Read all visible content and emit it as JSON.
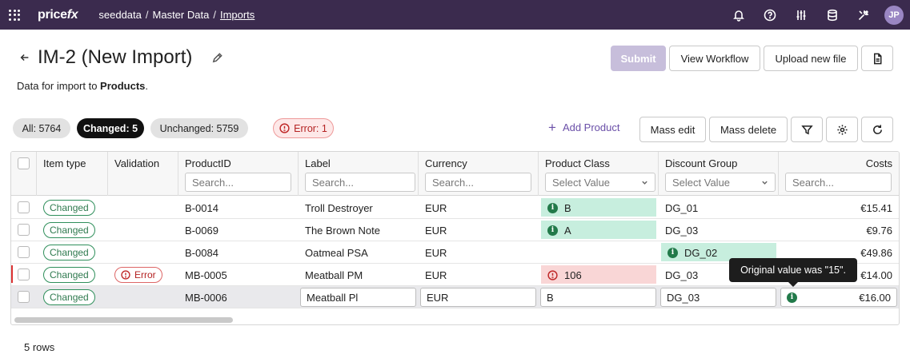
{
  "topbar": {
    "logo_main": "price",
    "logo_fx": "fx",
    "breadcrumb": [
      "seeddata",
      "Master Data",
      "Imports"
    ],
    "avatar_initials": "JP",
    "icons": [
      "bell-icon",
      "help-icon",
      "sliders-icon",
      "database-icon",
      "tools-icon"
    ]
  },
  "header": {
    "title": "IM-2 (New Import)",
    "subtitle_prefix": "Data for import to ",
    "subtitle_target": "Products",
    "subtitle_suffix": ".",
    "buttons": {
      "submit": "Submit",
      "view_workflow": "View Workflow",
      "upload_new_file": "Upload new file"
    }
  },
  "filters": {
    "all": "All: 5764",
    "changed": "Changed: 5",
    "unchanged": "Unchanged: 5759",
    "error": "Error: 1"
  },
  "toolbar": {
    "add_product": "Add Product",
    "mass_edit": "Mass edit",
    "mass_delete": "Mass delete"
  },
  "table": {
    "columns": {
      "item_type": "Item type",
      "validation": "Validation",
      "product_id": "ProductID",
      "label": "Label",
      "currency": "Currency",
      "product_class": "Product Class",
      "discount_group": "Discount Group",
      "costs": "Costs"
    },
    "search_placeholder": "Search...",
    "select_placeholder": "Select Value",
    "rows": [
      {
        "item_type": "Changed",
        "validation": "",
        "product_id": "B-0014",
        "label": "Troll Destroyer",
        "currency": "EUR",
        "product_class": "B",
        "discount_group": "DG_01",
        "costs": "€15.41"
      },
      {
        "item_type": "Changed",
        "validation": "",
        "product_id": "B-0069",
        "label": "The Brown Note",
        "currency": "EUR",
        "product_class": "A",
        "discount_group": "DG_03",
        "costs": "€9.76"
      },
      {
        "item_type": "Changed",
        "validation": "",
        "product_id": "B-0084",
        "label": "Oatmeal PSA",
        "currency": "EUR",
        "product_class": "",
        "discount_group": "DG_02",
        "costs": "€49.86"
      },
      {
        "item_type": "Changed",
        "validation": "Error",
        "product_id": "MB-0005",
        "label": "Meatball PM",
        "currency": "EUR",
        "product_class": "106",
        "discount_group": "DG_03",
        "costs": "€14.00"
      },
      {
        "item_type": "Changed",
        "validation": "",
        "product_id": "MB-0006",
        "label": "Meatball Pl",
        "currency": "EUR",
        "product_class": "B",
        "discount_group": "DG_03",
        "costs": "€16.00"
      }
    ]
  },
  "tooltip": "Original value was \"15\".",
  "footer": {
    "rows_count": "5 rows"
  }
}
